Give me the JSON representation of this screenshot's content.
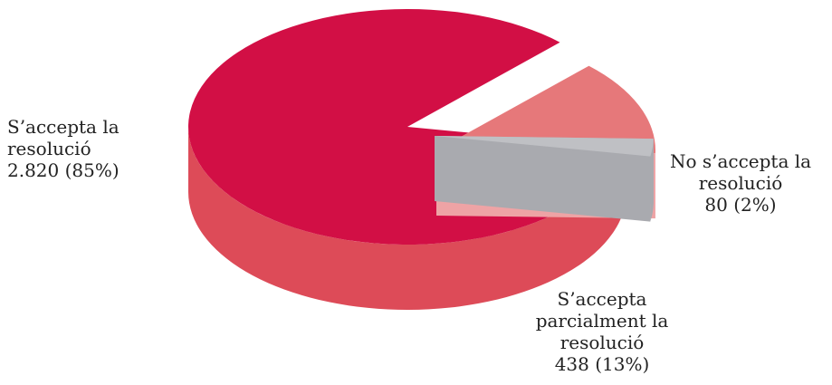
{
  "chart_data": {
    "type": "pie",
    "style": "3d-exploded",
    "slices": [
      {
        "label_lines": [
          "S’accepta la",
          "resolució"
        ],
        "value_text": "2.820 (85%)",
        "value": 2820,
        "percent": 85,
        "color": "#d20f45",
        "side_color": "#dd4b58"
      },
      {
        "label_lines": [
          "S’accepta",
          "parcialment la",
          "resolució"
        ],
        "value_text": "438 (13%)",
        "value": 438,
        "percent": 13,
        "color": "#e6787a",
        "side_color": "#eea3a5"
      },
      {
        "label_lines": [
          "No s’accepta la",
          "resolució"
        ],
        "value_text": "80 (2%)",
        "value": 80,
        "percent": 2,
        "color": "#bfc0c4",
        "side_color": "#a9aaaf"
      }
    ]
  }
}
